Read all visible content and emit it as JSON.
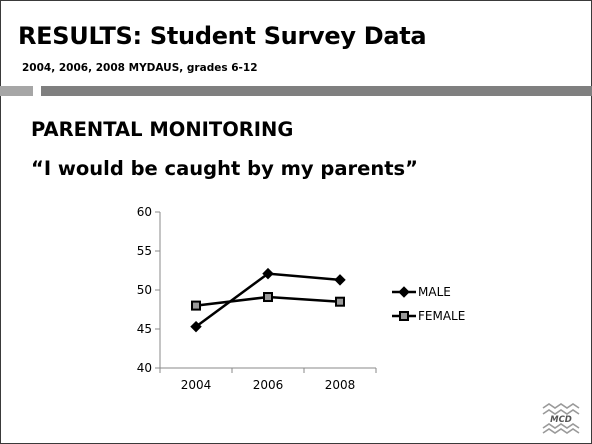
{
  "slide": {
    "title": "RESULTS: Student Survey Data",
    "subtitle": "2004, 2006, 2008 MYDAUS, grades 6-12",
    "heading": "PARENTAL MONITORING",
    "quote": "“I would be caught by my parents”",
    "logo_text": "MCD"
  },
  "colors": {
    "line": "#000000",
    "band_light": "#a6a6a6",
    "band_dark": "#7f7f7f"
  },
  "chart_data": {
    "type": "line",
    "title": "",
    "xlabel": "",
    "ylabel": "",
    "categories": [
      "2004",
      "2006",
      "2008"
    ],
    "y_ticks": [
      "40",
      "45",
      "50",
      "55",
      "60"
    ],
    "ylim": [
      40,
      60
    ],
    "grid": false,
    "legend_position": "right",
    "series": [
      {
        "name": "MALE",
        "marker": "diamond",
        "values": [
          45.3,
          52.1,
          51.3
        ]
      },
      {
        "name": "FEMALE",
        "marker": "square",
        "values": [
          48.0,
          49.1,
          48.5
        ]
      }
    ]
  }
}
